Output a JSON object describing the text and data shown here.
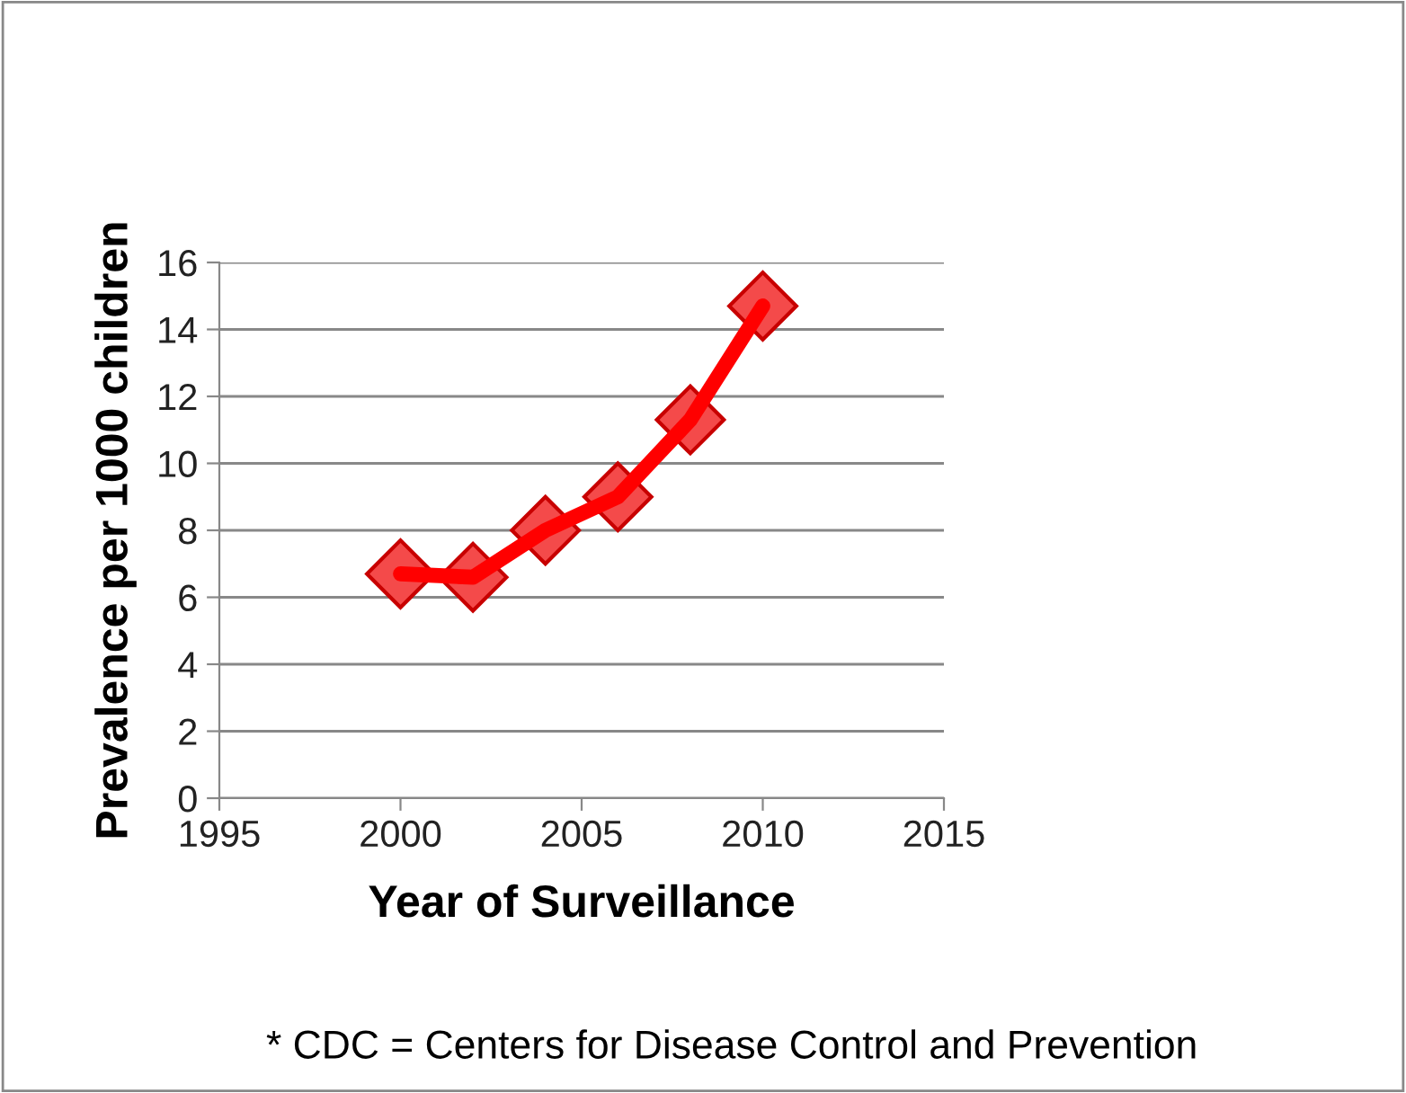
{
  "chart_data": {
    "type": "line",
    "xlabel": "Year of Surveillance",
    "ylabel": "Prevalence per 1000 children",
    "x": [
      2000,
      2002,
      2004,
      2006,
      2008,
      2010
    ],
    "series": [
      {
        "color": "#ff0000",
        "values": [
          6.7,
          6.6,
          8.0,
          9.0,
          11.3,
          14.7
        ]
      }
    ],
    "xlim": [
      1995,
      2015
    ],
    "xticks": [
      1995,
      2000,
      2005,
      2010,
      2015
    ],
    "ylim": [
      0,
      16
    ],
    "yticks": [
      0,
      2,
      4,
      6,
      8,
      10,
      12,
      14,
      16
    ],
    "grid": "y",
    "marker": "diamond",
    "line_style": "solid",
    "legend": false,
    "annotations": [
      "* CDC = Centers for Disease Control and Prevention"
    ]
  }
}
